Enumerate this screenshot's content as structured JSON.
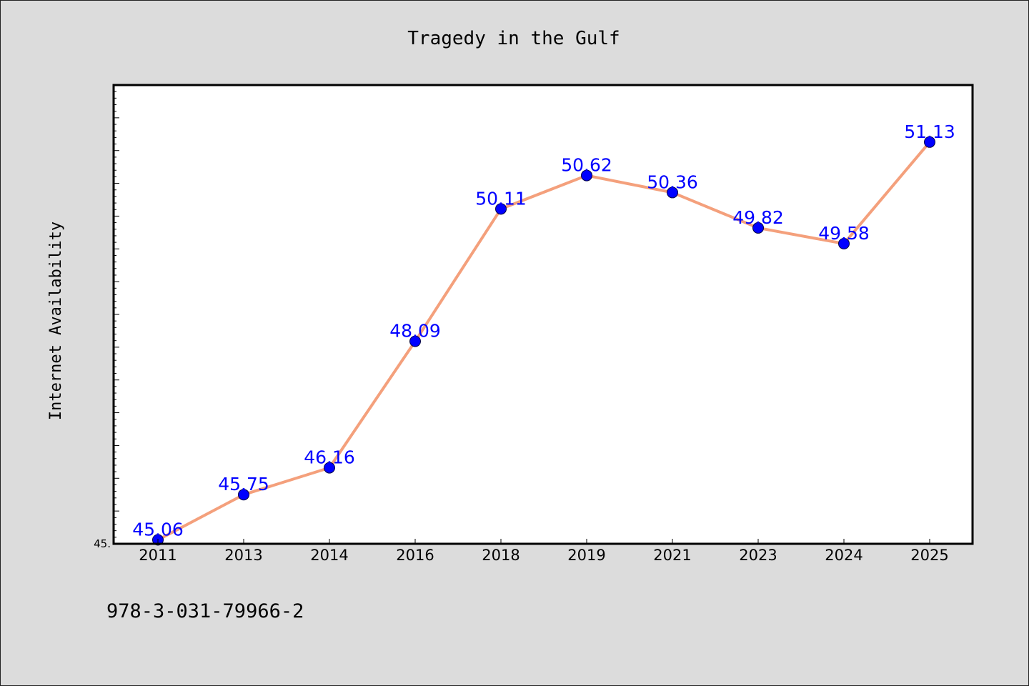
{
  "chart_data": {
    "type": "line",
    "title": "Tragedy in the Gulf",
    "xlabel": "",
    "ylabel": "Internet Availability",
    "categories": [
      "2011",
      "2013",
      "2014",
      "2016",
      "2018",
      "2019",
      "2021",
      "2023",
      "2024",
      "2025"
    ],
    "series": [
      {
        "values": [
          45.06,
          45.75,
          46.16,
          48.09,
          50.11,
          50.62,
          50.36,
          49.82,
          49.58,
          51.13
        ],
        "data_labels": [
          "45.06",
          "45.75",
          "46.16",
          "48.09",
          "50.11",
          "50.62",
          "50.36",
          "49.82",
          "49.58",
          "51.13"
        ],
        "line_color": "#f4a07c",
        "marker_color": "#0000ff"
      }
    ],
    "y_tick_label": "45.",
    "ylim": [
      45.0,
      52.0
    ],
    "grid": false,
    "legend": "none"
  },
  "footer": {
    "text": "978-3-031-79966-2"
  },
  "colors": {
    "background": "#dcdcdc",
    "plot_background": "#ffffff",
    "data_label": "#0000ff"
  }
}
